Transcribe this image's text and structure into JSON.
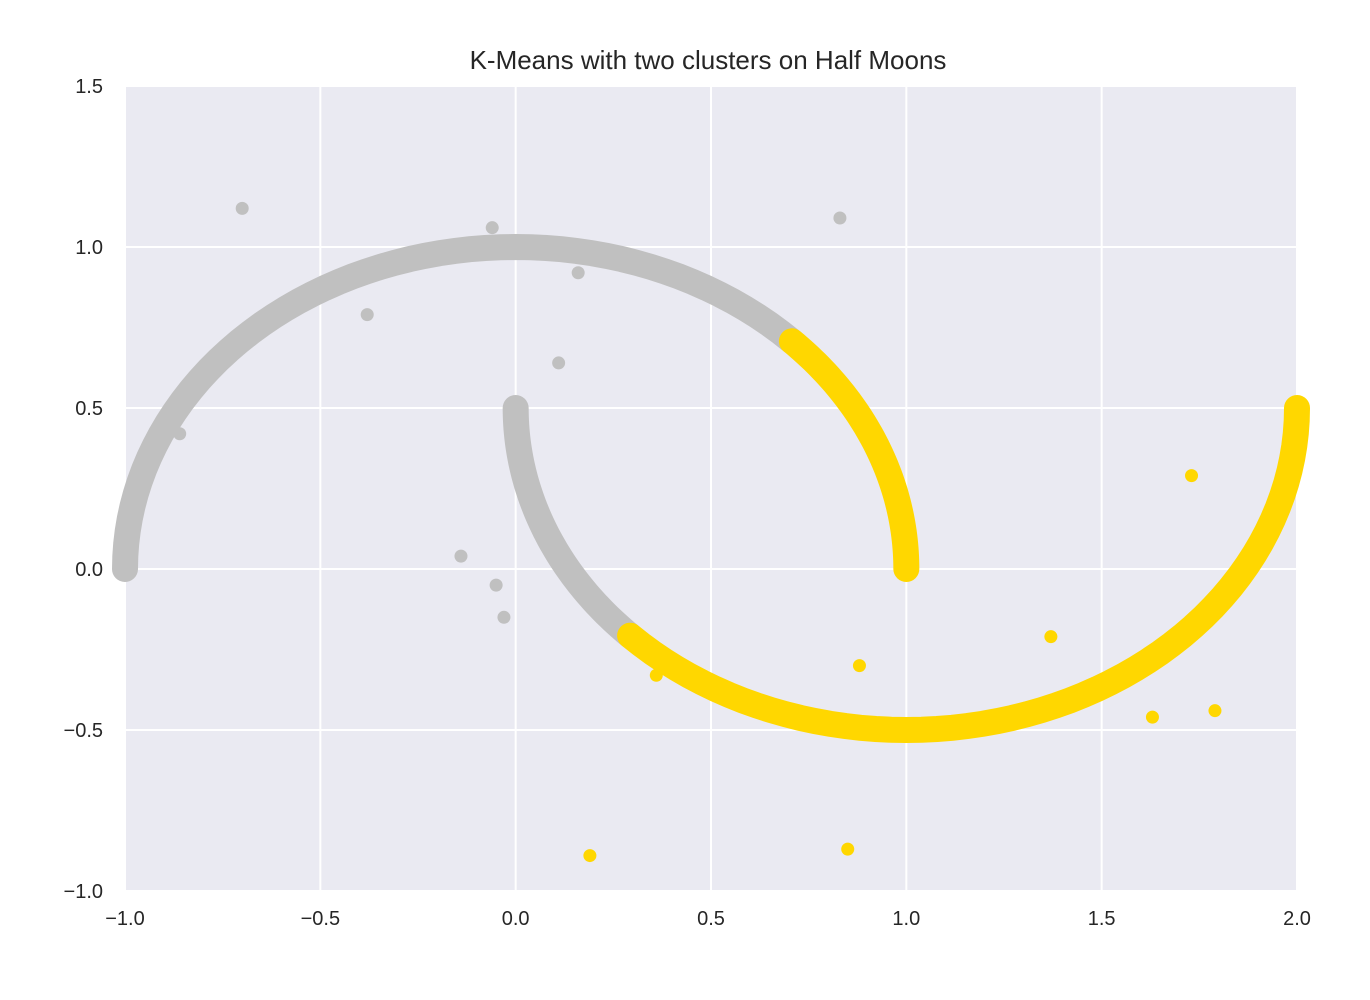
{
  "chart_data": {
    "type": "scatter",
    "title": "K-Means with two clusters on Half Moons",
    "xlabel": "",
    "ylabel": "",
    "xlim": [
      -1.0,
      2.0
    ],
    "ylim": [
      -1.0,
      1.5
    ],
    "x_ticks": [
      -1.0,
      -0.5,
      0.0,
      0.5,
      1.0,
      1.5,
      2.0
    ],
    "y_ticks": [
      -1.0,
      -0.5,
      0.0,
      0.5,
      1.0,
      1.5
    ],
    "x_tick_labels": [
      "−1.0",
      "−0.5",
      "0.0",
      "0.5",
      "1.0",
      "1.5",
      "2.0"
    ],
    "y_tick_labels": [
      "−1.0",
      "−0.5",
      "0.0",
      "0.5",
      "1.0",
      "1.5"
    ],
    "grid": true,
    "background_color": "#eaeaf2",
    "series": [
      {
        "color": "#c0c0c0",
        "moon_segments": [
          {
            "center": [
              0.0,
              0.0
            ],
            "radius": 1.0,
            "angle_deg_from": 45,
            "angle_deg_to": 180
          },
          {
            "center": [
              1.0,
              0.5
            ],
            "radius": 1.0,
            "angle_deg_from": 180,
            "angle_deg_to": 225
          }
        ],
        "outliers": [
          {
            "x": -0.7,
            "y": 1.12
          },
          {
            "x": -0.06,
            "y": 1.06
          },
          {
            "x": 0.83,
            "y": 1.09
          },
          {
            "x": 0.16,
            "y": 0.92
          },
          {
            "x": -0.38,
            "y": 0.79
          },
          {
            "x": 0.11,
            "y": 0.64
          },
          {
            "x": -0.86,
            "y": 0.42
          },
          {
            "x": -0.14,
            "y": 0.04
          },
          {
            "x": -0.05,
            "y": -0.05
          },
          {
            "x": -0.03,
            "y": -0.15
          }
        ]
      },
      {
        "color": "#ffd700",
        "moon_segments": [
          {
            "center": [
              0.0,
              0.0
            ],
            "radius": 1.0,
            "angle_deg_from": 0,
            "angle_deg_to": 45
          },
          {
            "center": [
              1.0,
              0.5
            ],
            "radius": 1.0,
            "angle_deg_from": 225,
            "angle_deg_to": 360
          }
        ],
        "outliers": [
          {
            "x": 0.36,
            "y": -0.33
          },
          {
            "x": 0.88,
            "y": -0.3
          },
          {
            "x": 1.37,
            "y": -0.21
          },
          {
            "x": 1.73,
            "y": 0.29
          },
          {
            "x": 1.63,
            "y": -0.46
          },
          {
            "x": 1.79,
            "y": -0.44
          },
          {
            "x": 0.19,
            "y": -0.89
          },
          {
            "x": 0.85,
            "y": -0.87
          }
        ]
      }
    ]
  }
}
